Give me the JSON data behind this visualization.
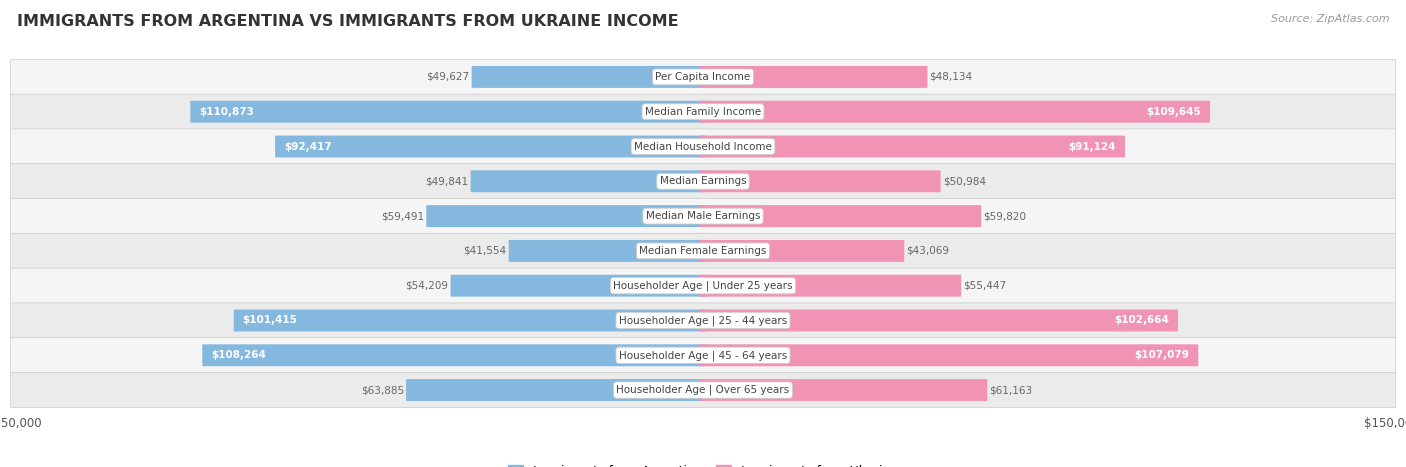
{
  "title": "IMMIGRANTS FROM ARGENTINA VS IMMIGRANTS FROM UKRAINE INCOME",
  "source": "Source: ZipAtlas.com",
  "categories": [
    "Per Capita Income",
    "Median Family Income",
    "Median Household Income",
    "Median Earnings",
    "Median Male Earnings",
    "Median Female Earnings",
    "Householder Age | Under 25 years",
    "Householder Age | 25 - 44 years",
    "Householder Age | 45 - 64 years",
    "Householder Age | Over 65 years"
  ],
  "argentina_values": [
    49627,
    110873,
    92417,
    49841,
    59491,
    41554,
    54209,
    101415,
    108264,
    63885
  ],
  "ukraine_values": [
    48134,
    109645,
    91124,
    50984,
    59820,
    43069,
    55447,
    102664,
    107079,
    61163
  ],
  "argentina_labels": [
    "$49,627",
    "$110,873",
    "$92,417",
    "$49,841",
    "$59,491",
    "$41,554",
    "$54,209",
    "$101,415",
    "$108,264",
    "$63,885"
  ],
  "ukraine_labels": [
    "$48,134",
    "$109,645",
    "$91,124",
    "$50,984",
    "$59,820",
    "$43,069",
    "$55,447",
    "$102,664",
    "$107,079",
    "$61,163"
  ],
  "argentina_color": "#85b8de",
  "ukraine_color": "#f093b4",
  "max_value": 150000,
  "bar_height": 0.62,
  "row_colors": [
    "#f5f5f5",
    "#ebebeb"
  ],
  "label_color_inside": "#ffffff",
  "label_color_outside": "#666666",
  "threshold_inside": 65000,
  "legend_argentina": "Immigrants from Argentina",
  "legend_ukraine": "Immigrants from Ukraine",
  "title_color": "#333333",
  "source_color": "#999999"
}
